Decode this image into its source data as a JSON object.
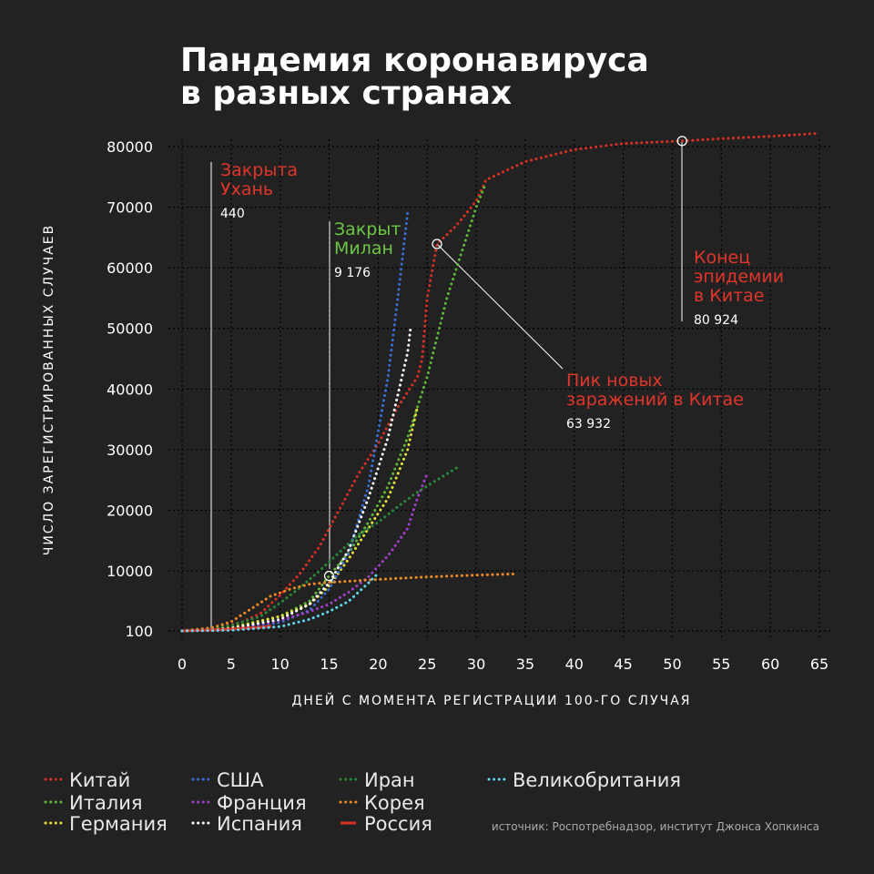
{
  "title": [
    "Пандемия коронавируса",
    "в разных странах"
  ],
  "source": "источник: Роспотребнадзор, институт Джонса Хопкинса",
  "chart_data": {
    "type": "line",
    "xlabel": "ДНЕЙ С МОМЕНТА РЕГИСТРАЦИИ 100-ГО СЛУЧАЯ",
    "ylabel": "ЧИСЛО ЗАРЕГИСТРИРОВАННЫХ СЛУЧАЕВ",
    "xlim": [
      0,
      65
    ],
    "ylim": [
      100,
      80000
    ],
    "x_ticks": [
      0,
      5,
      10,
      15,
      20,
      25,
      30,
      35,
      40,
      45,
      50,
      55,
      60,
      65
    ],
    "y_ticks": [
      {
        "value": 100,
        "label": "100"
      },
      {
        "value": 10000,
        "label": "10000"
      },
      {
        "value": 20000,
        "label": "20000"
      },
      {
        "value": 30000,
        "label": "30000"
      },
      {
        "value": 40000,
        "label": "40000"
      },
      {
        "value": 50000,
        "label": "50000"
      },
      {
        "value": 60000,
        "label": "60000"
      },
      {
        "value": 70000,
        "label": "70000"
      },
      {
        "value": 80000,
        "label": "80000"
      }
    ],
    "grid": true,
    "legend_position": "bottom",
    "series": [
      {
        "name": "Китай",
        "color": "#d93025",
        "style": "dotted",
        "points": [
          [
            0,
            100
          ],
          [
            2,
            440
          ],
          [
            4,
            800
          ],
          [
            6,
            1500
          ],
          [
            8,
            3000
          ],
          [
            10,
            6000
          ],
          [
            12,
            9500
          ],
          [
            14,
            14000
          ],
          [
            16,
            20000
          ],
          [
            18,
            26000
          ],
          [
            20,
            31000
          ],
          [
            22,
            37000
          ],
          [
            24,
            42000
          ],
          [
            24.5,
            45000
          ],
          [
            25,
            55000
          ],
          [
            26,
            63932
          ],
          [
            28,
            67000
          ],
          [
            30,
            71000
          ],
          [
            31,
            74500
          ],
          [
            35,
            77500
          ],
          [
            40,
            79500
          ],
          [
            45,
            80500
          ],
          [
            51,
            80924
          ],
          [
            55,
            81300
          ],
          [
            60,
            81700
          ],
          [
            65,
            82200
          ]
        ]
      },
      {
        "name": "Италия",
        "color": "#5fb83b",
        "style": "dotted",
        "points": [
          [
            0,
            100
          ],
          [
            5,
            700
          ],
          [
            10,
            2500
          ],
          [
            13,
            5000
          ],
          [
            15,
            9176
          ],
          [
            17,
            13000
          ],
          [
            19,
            18000
          ],
          [
            21,
            24000
          ],
          [
            23,
            32000
          ],
          [
            25,
            42000
          ],
          [
            27,
            55000
          ],
          [
            29,
            65000
          ],
          [
            30,
            70000
          ],
          [
            31,
            74000
          ]
        ]
      },
      {
        "name": "Германия",
        "color": "#e8e33a",
        "style": "dotted",
        "points": [
          [
            0,
            100
          ],
          [
            5,
            600
          ],
          [
            10,
            2500
          ],
          [
            13,
            4500
          ],
          [
            15,
            7500
          ],
          [
            17,
            12000
          ],
          [
            19,
            17000
          ],
          [
            21,
            22000
          ],
          [
            23,
            30000
          ],
          [
            24,
            37000
          ]
        ]
      },
      {
        "name": "США",
        "color": "#3a6fd8",
        "style": "dotted",
        "points": [
          [
            0,
            100
          ],
          [
            5,
            400
          ],
          [
            10,
            1500
          ],
          [
            13,
            3500
          ],
          [
            15,
            7000
          ],
          [
            17,
            13000
          ],
          [
            19,
            24000
          ],
          [
            20,
            33000
          ],
          [
            21,
            42000
          ],
          [
            22,
            55000
          ],
          [
            23,
            69000
          ]
        ]
      },
      {
        "name": "Франция",
        "color": "#a040c8",
        "style": "dotted",
        "points": [
          [
            0,
            100
          ],
          [
            5,
            500
          ],
          [
            10,
            1800
          ],
          [
            13,
            3300
          ],
          [
            15,
            4500
          ],
          [
            17,
            6500
          ],
          [
            19,
            9000
          ],
          [
            21,
            12500
          ],
          [
            23,
            17000
          ],
          [
            24,
            22000
          ],
          [
            25,
            26000
          ]
        ]
      },
      {
        "name": "Испания",
        "color": "#ffffff",
        "style": "dotted",
        "points": [
          [
            0,
            100
          ],
          [
            5,
            500
          ],
          [
            10,
            2000
          ],
          [
            13,
            4500
          ],
          [
            15,
            8000
          ],
          [
            17,
            13500
          ],
          [
            19,
            22000
          ],
          [
            21,
            32000
          ],
          [
            22,
            39000
          ],
          [
            23,
            46000
          ],
          [
            23.3,
            50000
          ]
        ]
      },
      {
        "name": "Иран",
        "color": "#2a8a3a",
        "style": "dotted",
        "points": [
          [
            0,
            100
          ],
          [
            5,
            1000
          ],
          [
            8,
            2500
          ],
          [
            10,
            4700
          ],
          [
            12,
            7200
          ],
          [
            14,
            10000
          ],
          [
            16,
            13000
          ],
          [
            18,
            16000
          ],
          [
            20,
            18000
          ],
          [
            22,
            20600
          ],
          [
            24,
            23000
          ],
          [
            26,
            25000
          ],
          [
            28,
            27000
          ]
        ]
      },
      {
        "name": "Корея",
        "color": "#f08a24",
        "style": "dotted",
        "points": [
          [
            0,
            100
          ],
          [
            3,
            600
          ],
          [
            5,
            1600
          ],
          [
            7,
            3700
          ],
          [
            9,
            5800
          ],
          [
            11,
            7000
          ],
          [
            13,
            7800
          ],
          [
            15,
            8100
          ],
          [
            17,
            8300
          ],
          [
            20,
            8600
          ],
          [
            25,
            9000
          ],
          [
            30,
            9300
          ],
          [
            34,
            9500
          ]
        ]
      },
      {
        "name": "Россия",
        "color": "#d93025",
        "style": "solid",
        "points": [
          [
            0,
            100
          ],
          [
            2,
            200
          ],
          [
            4,
            300
          ],
          [
            6,
            500
          ],
          [
            8,
            700
          ],
          [
            9,
            900
          ]
        ]
      },
      {
        "name": "Великобритания",
        "color": "#5fd8f0",
        "style": "dotted",
        "points": [
          [
            0,
            100
          ],
          [
            5,
            200
          ],
          [
            10,
            800
          ],
          [
            13,
            2000
          ],
          [
            15,
            3300
          ],
          [
            17,
            5000
          ],
          [
            19,
            8000
          ],
          [
            20,
            9600
          ]
        ]
      }
    ],
    "annotations": [
      {
        "key": "wuhan",
        "title": [
          "Закрыта",
          "Ухань"
        ],
        "value": "440",
        "color": "#e0352b",
        "x": 3,
        "y": 440
      },
      {
        "key": "milan",
        "title": [
          "Закрыт",
          "Милан"
        ],
        "value": "9 176",
        "color": "#6cc644",
        "x": 15,
        "y": 9176
      },
      {
        "key": "peak",
        "title": [
          "Пик новых",
          "заражений в Китае"
        ],
        "value": "63 932",
        "color": "#e0352b",
        "x": 26,
        "y": 63932
      },
      {
        "key": "end",
        "title": [
          "Конец",
          "эпидемии",
          "в Китае"
        ],
        "value": "80 924",
        "color": "#e0352b",
        "x": 51,
        "y": 80924
      }
    ]
  },
  "legend": [
    {
      "label": "Китай",
      "color": "#d93025",
      "style": "dotted"
    },
    {
      "label": "Италия",
      "color": "#5fb83b",
      "style": "dotted"
    },
    {
      "label": "Германия",
      "color": "#e8e33a",
      "style": "dotted"
    },
    {
      "label": "США",
      "color": "#3a6fd8",
      "style": "dotted"
    },
    {
      "label": "Франция",
      "color": "#a040c8",
      "style": "dotted"
    },
    {
      "label": "Испания",
      "color": "#ffffff",
      "style": "dotted"
    },
    {
      "label": "Иран",
      "color": "#2a8a3a",
      "style": "dotted"
    },
    {
      "label": "Корея",
      "color": "#f08a24",
      "style": "dotted"
    },
    {
      "label": "Россия",
      "color": "#d93025",
      "style": "solid"
    },
    {
      "label": "Великобритания",
      "color": "#5fd8f0",
      "style": "dotted"
    }
  ]
}
